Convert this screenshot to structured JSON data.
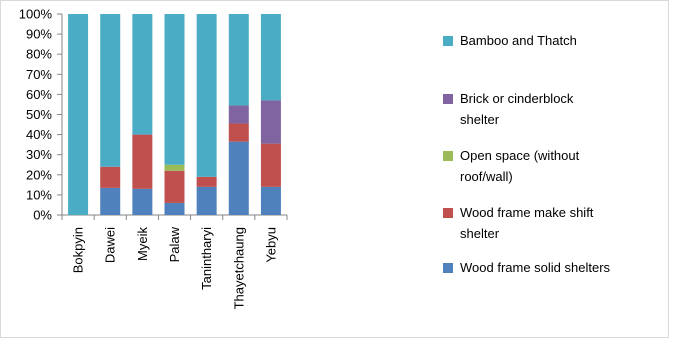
{
  "chart_data": {
    "type": "bar",
    "stacked": true,
    "percent_axis": true,
    "categories": [
      "Bokpyin",
      "Dawei",
      "Myeik",
      "Palaw",
      "Tanintharyi",
      "Thayetchaung",
      "Yebyu"
    ],
    "series": [
      {
        "name": "Wood frame solid shelters",
        "color": "#4F81BD",
        "values": [
          0,
          13.5,
          13,
          6,
          14,
          36.5,
          14
        ]
      },
      {
        "name": "Wood frame make shift shelter",
        "color": "#C0504D",
        "values": [
          0,
          10.5,
          27,
          16,
          5,
          9,
          21.5
        ]
      },
      {
        "name": "Open space (without roof/wall)",
        "color": "#9BBB59",
        "values": [
          0,
          0,
          0,
          3,
          0,
          0,
          0
        ]
      },
      {
        "name": "Brick or cinderblock shelter",
        "color": "#8064A2",
        "values": [
          0,
          0,
          0,
          0,
          0,
          9,
          21.5
        ]
      },
      {
        "name": "Bamboo and Thatch",
        "color": "#4BACC6",
        "values": [
          100,
          76,
          60,
          75,
          81,
          45.5,
          43
        ]
      }
    ],
    "ylim": [
      0,
      100
    ],
    "yticks": [
      "0%",
      "10%",
      "20%",
      "30%",
      "40%",
      "50%",
      "60%",
      "70%",
      "80%",
      "90%",
      "100%"
    ],
    "legend_order": [
      {
        "lines": [
          "Bamboo and Thatch"
        ],
        "series": 4
      },
      {
        "lines": [
          "Brick or cinderblock",
          "shelter"
        ],
        "series": 3
      },
      {
        "lines": [
          "Open space (without",
          "roof/wall)"
        ],
        "series": 2
      },
      {
        "lines": [
          "Wood frame make shift",
          "shelter"
        ],
        "series": 1
      },
      {
        "lines": [
          "Wood frame solid shelters"
        ],
        "series": 0
      }
    ],
    "legend_position": "right",
    "grid": false
  }
}
